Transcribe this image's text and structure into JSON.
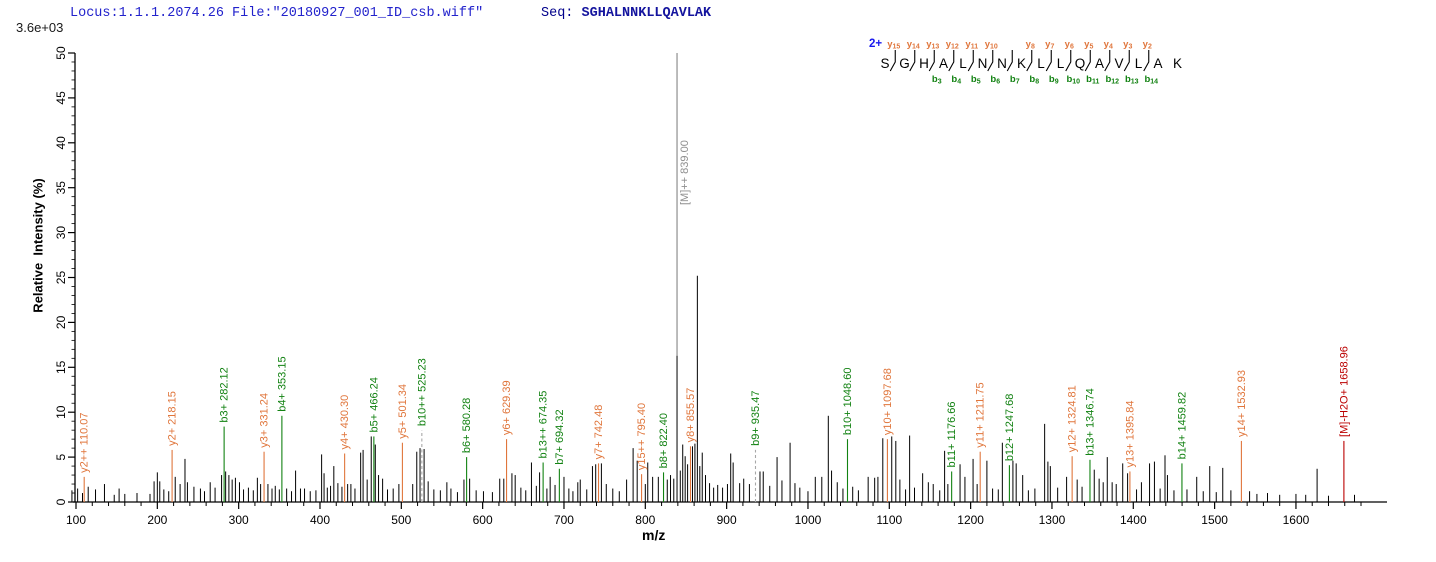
{
  "header": {
    "locus_file": "Locus:1.1.1.2074.26 File:\"20180927_001_ID_csb.wiff\"",
    "seq_label": "Seq: ",
    "sequence": "SGHALNNKLLQAVLAK"
  },
  "y_axis": {
    "scale_label": "3.6e+03",
    "title": "Relative  Intensity (%)",
    "major_ticks": [
      0,
      5,
      10,
      15,
      20,
      25,
      30,
      35,
      40,
      45,
      50
    ],
    "minor_step": 1
  },
  "x_axis": {
    "title": "m/z",
    "major_ticks": [
      100,
      200,
      300,
      400,
      500,
      600,
      700,
      800,
      900,
      1000,
      1100,
      1200,
      1300,
      1400,
      1500,
      1600
    ],
    "minor_step": 20,
    "minor_end": 1680
  },
  "ladder": {
    "charge_label": "2+",
    "residues": [
      "S",
      "G",
      "H",
      "A",
      "L",
      "N",
      "N",
      "K",
      "L",
      "L",
      "Q",
      "A",
      "V",
      "L",
      "A",
      "K"
    ],
    "y_ions": [
      {
        "gap": 1,
        "n": 15
      },
      {
        "gap": 2,
        "n": 14
      },
      {
        "gap": 3,
        "n": 13
      },
      {
        "gap": 4,
        "n": 12
      },
      {
        "gap": 5,
        "n": 11
      },
      {
        "gap": 6,
        "n": 10
      },
      {
        "gap": 8,
        "n": 8
      },
      {
        "gap": 9,
        "n": 7
      },
      {
        "gap": 10,
        "n": 6
      },
      {
        "gap": 11,
        "n": 5
      },
      {
        "gap": 12,
        "n": 4
      },
      {
        "gap": 13,
        "n": 3
      },
      {
        "gap": 14,
        "n": 2
      }
    ],
    "b_ions": [
      {
        "gap": 3,
        "n": 3
      },
      {
        "gap": 4,
        "n": 4
      },
      {
        "gap": 5,
        "n": 5
      },
      {
        "gap": 6,
        "n": 6
      },
      {
        "gap": 7,
        "n": 7
      },
      {
        "gap": 8,
        "n": 8
      },
      {
        "gap": 9,
        "n": 9
      },
      {
        "gap": 10,
        "n": 10
      },
      {
        "gap": 11,
        "n": 11
      },
      {
        "gap": 12,
        "n": 12
      },
      {
        "gap": 13,
        "n": 13
      },
      {
        "gap": 14,
        "n": 14
      }
    ],
    "slash_gaps": [
      1,
      2,
      3,
      4,
      5,
      6,
      7,
      8,
      9,
      10,
      11,
      12,
      13,
      14
    ]
  },
  "colors": {
    "y_ion": "#E0763C",
    "b_ion": "#128212",
    "precursor_gray": "#8f8f8f",
    "neutral_loss_red": "#bb0000",
    "peak_black": "#000000",
    "header_blue": "#2222cc",
    "seq_navy": "#00008b",
    "charge_blue": "#1a1aee",
    "dashed_line": "#a8a8a8",
    "axis": "#000000"
  },
  "chart_data": {
    "type": "bar",
    "subtype": "ms2-fragmentation-spectrum",
    "title": "Locus:1.1.1.2074.26 File:\"20180927_001_ID_csb.wiff\" Seq: SGHALNNKLLQAVLAK",
    "xlabel": "m/z",
    "ylabel": "Relative Intensity (%)",
    "xlim": [
      96,
      1712
    ],
    "ylim": [
      0,
      50
    ],
    "grid": false,
    "intensity_full_scale": "3.6e+03",
    "labeled_peaks": [
      {
        "label": "y2++ 110.07",
        "mz": 110.07,
        "intensity": 2.8,
        "ion": "y",
        "dashed": false
      },
      {
        "label": "y2+ 218.15",
        "mz": 218.15,
        "intensity": 5.8,
        "ion": "y",
        "dashed": false
      },
      {
        "label": "b3+ 282.12",
        "mz": 282.12,
        "intensity": 8.4,
        "ion": "b",
        "dashed": false
      },
      {
        "label": "y3+ 331.24",
        "mz": 331.24,
        "intensity": 5.6,
        "ion": "y",
        "dashed": false
      },
      {
        "label": "b4+ 353.15",
        "mz": 353.15,
        "intensity": 9.6,
        "ion": "b",
        "dashed": false
      },
      {
        "label": "y4+ 430.30",
        "mz": 430.3,
        "intensity": 5.4,
        "ion": "y",
        "dashed": false
      },
      {
        "label": "b5+ 466.24",
        "mz": 466.24,
        "intensity": 7.3,
        "ion": "b",
        "dashed": false
      },
      {
        "label": "y5+ 501.34",
        "mz": 501.34,
        "intensity": 6.6,
        "ion": "y",
        "dashed": false
      },
      {
        "label": "b10++ 525.23",
        "mz": 525.23,
        "intensity": 8.0,
        "ion": "b",
        "dashed": true
      },
      {
        "label": "b6+ 580.28",
        "mz": 580.28,
        "intensity": 5.0,
        "ion": "b",
        "dashed": false
      },
      {
        "label": "y6+ 629.39",
        "mz": 629.39,
        "intensity": 7.0,
        "ion": "y",
        "dashed": false
      },
      {
        "label": "b13++ 674.35",
        "mz": 674.35,
        "intensity": 4.4,
        "ion": "b",
        "dashed": false
      },
      {
        "label": "b7+ 694.32",
        "mz": 694.32,
        "intensity": 3.7,
        "ion": "b",
        "dashed": false
      },
      {
        "label": "y7+ 742.48",
        "mz": 742.48,
        "intensity": 4.3,
        "ion": "y",
        "dashed": false
      },
      {
        "label": "y15++ 795.40",
        "mz": 795.4,
        "intensity": 3.1,
        "ion": "y",
        "dashed": false
      },
      {
        "label": "b8+ 822.40",
        "mz": 822.4,
        "intensity": 3.3,
        "ion": "b",
        "dashed": false
      },
      {
        "label": "y8+ 855.57",
        "mz": 855.57,
        "intensity": 6.2,
        "ion": "y",
        "dashed": false
      },
      {
        "label": "b9+ 935.47",
        "mz": 935.47,
        "intensity": 5.8,
        "ion": "b",
        "dashed": true
      },
      {
        "label": "b10+ 1048.60",
        "mz": 1048.6,
        "intensity": 7.0,
        "ion": "b",
        "dashed": false
      },
      {
        "label": "y10+ 1097.68",
        "mz": 1097.68,
        "intensity": 7.0,
        "ion": "y",
        "dashed": false
      },
      {
        "label": "b11+ 1176.66",
        "mz": 1176.66,
        "intensity": 3.4,
        "ion": "b",
        "dashed": false
      },
      {
        "label": "y11+ 1211.75",
        "mz": 1211.75,
        "intensity": 5.6,
        "ion": "y",
        "dashed": false
      },
      {
        "label": "b12+ 1247.68",
        "mz": 1247.68,
        "intensity": 4.1,
        "ion": "b",
        "dashed": false
      },
      {
        "label": "y12+ 1324.81",
        "mz": 1324.81,
        "intensity": 5.1,
        "ion": "y",
        "dashed": false
      },
      {
        "label": "b13+ 1346.74",
        "mz": 1346.74,
        "intensity": 4.7,
        "ion": "b",
        "dashed": false
      },
      {
        "label": "y13+ 1395.84",
        "mz": 1395.84,
        "intensity": 3.4,
        "ion": "y",
        "dashed": false
      },
      {
        "label": "b14+ 1459.82",
        "mz": 1459.82,
        "intensity": 4.3,
        "ion": "b",
        "dashed": false
      },
      {
        "label": "y14+ 1532.93",
        "mz": 1532.93,
        "intensity": 6.8,
        "ion": "y",
        "dashed": false
      },
      {
        "label": "[M]-H2O+ 1658.96",
        "mz": 1658.96,
        "intensity": 6.8,
        "ion": "neutral_loss",
        "dashed": false
      }
    ],
    "precursor": {
      "label": "[M]++ 839.00",
      "mz": 839.0,
      "marker_top_intensity": 50.0,
      "peak_intensity": 16.3
    },
    "unlabeled_peaks": [
      [
        95,
        1.3
      ],
      [
        102,
        1.5
      ],
      [
        108,
        1.0
      ],
      [
        115,
        1.7
      ],
      [
        124,
        1.4
      ],
      [
        135,
        2.0
      ],
      [
        147,
        0.8
      ],
      [
        153,
        1.5
      ],
      [
        160,
        0.9
      ],
      [
        175,
        1.0
      ],
      [
        191,
        0.9
      ],
      [
        196,
        2.3
      ],
      [
        200,
        3.3
      ],
      [
        203,
        2.3
      ],
      [
        208,
        1.4
      ],
      [
        214,
        1.2
      ],
      [
        222,
        2.8
      ],
      [
        228,
        2.0
      ],
      [
        234,
        4.8
      ],
      [
        237,
        2.2
      ],
      [
        245,
        1.7
      ],
      [
        253,
        1.5
      ],
      [
        258,
        1.2
      ],
      [
        265,
        2.2
      ],
      [
        271,
        1.6
      ],
      [
        279,
        3.0
      ],
      [
        284,
        3.4
      ],
      [
        288,
        3.0
      ],
      [
        292,
        2.5
      ],
      [
        296,
        2.7
      ],
      [
        301,
        2.2
      ],
      [
        306,
        1.4
      ],
      [
        312,
        1.6
      ],
      [
        318,
        1.3
      ],
      [
        323,
        2.7
      ],
      [
        327,
        2.0
      ],
      [
        336,
        2.0
      ],
      [
        341,
        1.5
      ],
      [
        345,
        1.8
      ],
      [
        350,
        1.4
      ],
      [
        359,
        1.5
      ],
      [
        365,
        1.2
      ],
      [
        370,
        3.5
      ],
      [
        376,
        1.5
      ],
      [
        381,
        1.5
      ],
      [
        388,
        1.2
      ],
      [
        395,
        1.3
      ],
      [
        402,
        5.3
      ],
      [
        405,
        3.2
      ],
      [
        409,
        1.6
      ],
      [
        413,
        1.8
      ],
      [
        417,
        4.0
      ],
      [
        422,
        2.1
      ],
      [
        427,
        1.7
      ],
      [
        434,
        2.0
      ],
      [
        438,
        2.0
      ],
      [
        443,
        1.5
      ],
      [
        450,
        5.5
      ],
      [
        453,
        5.8
      ],
      [
        458,
        2.5
      ],
      [
        463,
        7.3
      ],
      [
        468,
        6.4
      ],
      [
        472,
        3.0
      ],
      [
        477,
        2.6
      ],
      [
        483,
        1.4
      ],
      [
        490,
        1.5
      ],
      [
        497,
        2.0
      ],
      [
        514,
        2.0
      ],
      [
        519,
        5.6
      ],
      [
        523,
        6.0
      ],
      [
        528,
        5.9
      ],
      [
        533,
        2.3
      ],
      [
        540,
        1.4
      ],
      [
        548,
        1.3
      ],
      [
        556,
        2.2
      ],
      [
        561,
        1.5
      ],
      [
        569,
        1.1
      ],
      [
        577,
        2.5
      ],
      [
        584,
        2.6
      ],
      [
        592,
        1.3
      ],
      [
        601,
        1.2
      ],
      [
        612,
        1.1
      ],
      [
        621,
        2.6
      ],
      [
        626,
        2.6
      ],
      [
        636,
        3.2
      ],
      [
        640,
        3.0
      ],
      [
        647,
        1.6
      ],
      [
        653,
        1.3
      ],
      [
        660,
        4.4
      ],
      [
        666,
        1.8
      ],
      [
        670,
        3.3
      ],
      [
        679,
        1.5
      ],
      [
        683,
        2.8
      ],
      [
        689,
        1.9
      ],
      [
        700,
        2.8
      ],
      [
        706,
        1.5
      ],
      [
        711,
        1.2
      ],
      [
        717,
        2.2
      ],
      [
        720,
        2.5
      ],
      [
        728,
        1.4
      ],
      [
        735,
        4.0
      ],
      [
        739,
        4.2
      ],
      [
        746,
        4.3
      ],
      [
        752,
        2.0
      ],
      [
        760,
        1.5
      ],
      [
        768,
        1.2
      ],
      [
        777,
        2.5
      ],
      [
        785,
        6.0
      ],
      [
        790,
        4.6
      ],
      [
        800,
        2.0
      ],
      [
        803,
        4.4
      ],
      [
        809,
        2.8
      ],
      [
        816,
        2.8
      ],
      [
        827,
        2.5
      ],
      [
        831,
        3.0
      ],
      [
        835,
        2.6
      ],
      [
        839,
        16.3
      ],
      [
        843,
        3.5
      ],
      [
        846,
        6.4
      ],
      [
        849,
        5.1
      ],
      [
        852,
        4.2
      ],
      [
        858,
        6.2
      ],
      [
        861,
        6.5
      ],
      [
        864,
        25.2
      ],
      [
        867,
        4.0
      ],
      [
        870,
        5.5
      ],
      [
        874,
        3.0
      ],
      [
        879,
        2.1
      ],
      [
        884,
        1.6
      ],
      [
        889,
        1.9
      ],
      [
        895,
        1.6
      ],
      [
        901,
        2.0
      ],
      [
        905,
        5.4
      ],
      [
        908,
        4.4
      ],
      [
        916,
        2.1
      ],
      [
        921,
        2.6
      ],
      [
        928,
        2.0
      ],
      [
        941,
        3.4
      ],
      [
        945,
        3.4
      ],
      [
        953,
        1.8
      ],
      [
        962,
        5.0
      ],
      [
        968,
        2.4
      ],
      [
        978,
        6.6
      ],
      [
        984,
        2.1
      ],
      [
        990,
        1.6
      ],
      [
        1000,
        1.2
      ],
      [
        1009,
        2.8
      ],
      [
        1017,
        2.8
      ],
      [
        1025,
        9.6
      ],
      [
        1029,
        3.5
      ],
      [
        1036,
        2.2
      ],
      [
        1043,
        1.5
      ],
      [
        1055,
        1.7
      ],
      [
        1062,
        1.3
      ],
      [
        1074,
        2.8
      ],
      [
        1082,
        2.7
      ],
      [
        1086,
        2.8
      ],
      [
        1092,
        7.1
      ],
      [
        1103,
        7.3
      ],
      [
        1108,
        6.8
      ],
      [
        1113,
        2.5
      ],
      [
        1120,
        1.4
      ],
      [
        1125,
        7.4
      ],
      [
        1131,
        1.6
      ],
      [
        1141,
        3.2
      ],
      [
        1148,
        2.2
      ],
      [
        1154,
        2.0
      ],
      [
        1162,
        1.3
      ],
      [
        1168,
        5.7
      ],
      [
        1172,
        2.0
      ],
      [
        1187,
        4.2
      ],
      [
        1193,
        2.8
      ],
      [
        1203,
        4.8
      ],
      [
        1208,
        2.0
      ],
      [
        1220,
        4.6
      ],
      [
        1227,
        1.5
      ],
      [
        1234,
        1.4
      ],
      [
        1239,
        6.6
      ],
      [
        1252,
        4.6
      ],
      [
        1256,
        4.3
      ],
      [
        1264,
        3.0
      ],
      [
        1271,
        1.3
      ],
      [
        1279,
        1.5
      ],
      [
        1291,
        8.7
      ],
      [
        1295,
        4.5
      ],
      [
        1298,
        4.0
      ],
      [
        1307,
        1.6
      ],
      [
        1318,
        2.8
      ],
      [
        1331,
        2.5
      ],
      [
        1337,
        1.7
      ],
      [
        1352,
        3.6
      ],
      [
        1358,
        2.6
      ],
      [
        1363,
        2.2
      ],
      [
        1368,
        5.0
      ],
      [
        1374,
        2.2
      ],
      [
        1379,
        2.0
      ],
      [
        1387,
        4.3
      ],
      [
        1393,
        3.2
      ],
      [
        1404,
        1.4
      ],
      [
        1410,
        2.2
      ],
      [
        1420,
        4.3
      ],
      [
        1426,
        4.5
      ],
      [
        1433,
        1.5
      ],
      [
        1439,
        5.2
      ],
      [
        1442,
        3.0
      ],
      [
        1450,
        1.3
      ],
      [
        1466,
        1.4
      ],
      [
        1478,
        2.8
      ],
      [
        1486,
        1.2
      ],
      [
        1494,
        4.0
      ],
      [
        1502,
        1.1
      ],
      [
        1510,
        3.8
      ],
      [
        1520,
        1.3
      ],
      [
        1543,
        1.2
      ],
      [
        1552,
        0.9
      ],
      [
        1565,
        1.0
      ],
      [
        1580,
        0.8
      ],
      [
        1600,
        0.9
      ],
      [
        1612,
        0.8
      ],
      [
        1626,
        3.7
      ],
      [
        1640,
        0.7
      ],
      [
        1672,
        0.8
      ]
    ]
  }
}
